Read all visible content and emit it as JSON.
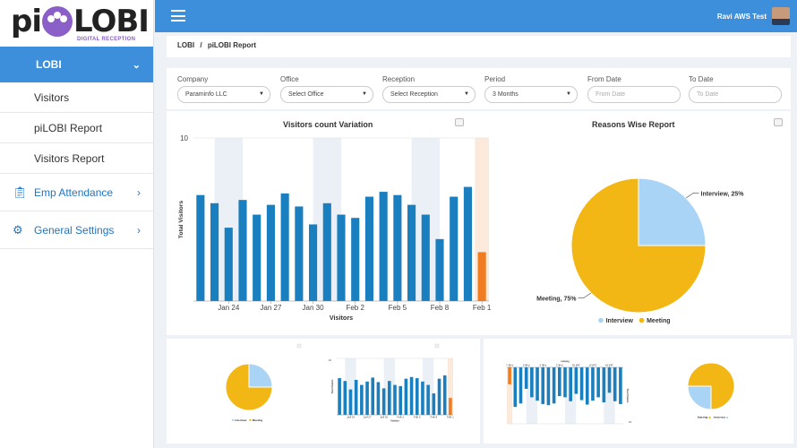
{
  "brand": {
    "left": "pi",
    "right": "LOBI",
    "tagline": "DIGITAL RECEPTION"
  },
  "colors": {
    "primary": "#3d8fdc",
    "bar": "#1a7fbf",
    "bar_last": "#f07c22",
    "pie_meeting": "#f2b714",
    "pie_interview": "#a9d4f5",
    "link": "#1f74c4"
  },
  "sidebar": {
    "top": {
      "label": "LOBI",
      "icon": "chevron-down-icon"
    },
    "items": [
      {
        "label": "Visitors"
      },
      {
        "label": "piLOBI Report"
      },
      {
        "label": "Visitors Report"
      }
    ],
    "sections": [
      {
        "label": "Emp Attendance",
        "icon": "clipboard-icon"
      },
      {
        "label": "General Settings",
        "icon": "gears-icon"
      }
    ]
  },
  "header": {
    "user": "Ravi AWS Test"
  },
  "breadcrumb": {
    "root": "LOBI",
    "sep": "/",
    "current": "piLOBI Report"
  },
  "filters": [
    {
      "label": "Company",
      "value": "Paraminfo LLC",
      "type": "select"
    },
    {
      "label": "Office",
      "value": "Select Office",
      "type": "select"
    },
    {
      "label": "Reception",
      "value": "Select Reception",
      "type": "select"
    },
    {
      "label": "Period",
      "value": "3 Months",
      "type": "select"
    },
    {
      "label": "From Date",
      "placeholder": "From Date",
      "type": "input"
    },
    {
      "label": "To Date",
      "placeholder": "To Date",
      "type": "input"
    }
  ],
  "chart_data": [
    {
      "type": "bar",
      "title": "Visitors count Variation",
      "xlabel": "Visitors",
      "ylabel": "Total Visitors",
      "ylim": [
        0,
        10
      ],
      "ytick_labels": [
        "10"
      ],
      "xtick_labels": [
        "Jan 24",
        "Jan 27",
        "Jan 30",
        "Feb 2",
        "Feb 5",
        "Feb 8",
        "Feb 1"
      ],
      "values": [
        6.5,
        6.0,
        4.5,
        6.2,
        5.3,
        5.9,
        6.6,
        5.8,
        4.7,
        6.0,
        5.3,
        5.1,
        6.4,
        6.7,
        6.5,
        5.9,
        5.3,
        3.8,
        6.4,
        7.0,
        3.0
      ],
      "highlight_last": true,
      "band_cats": [
        2,
        9,
        16
      ],
      "grid": false
    },
    {
      "type": "pie",
      "title": "Reasons Wise Report",
      "slices": [
        {
          "label": "Interview",
          "value": 25,
          "data_label": "Interview, 25%"
        },
        {
          "label": "Meeting",
          "value": 75,
          "data_label": "Meeting, 75%"
        }
      ],
      "legend_position": "bottom"
    }
  ]
}
